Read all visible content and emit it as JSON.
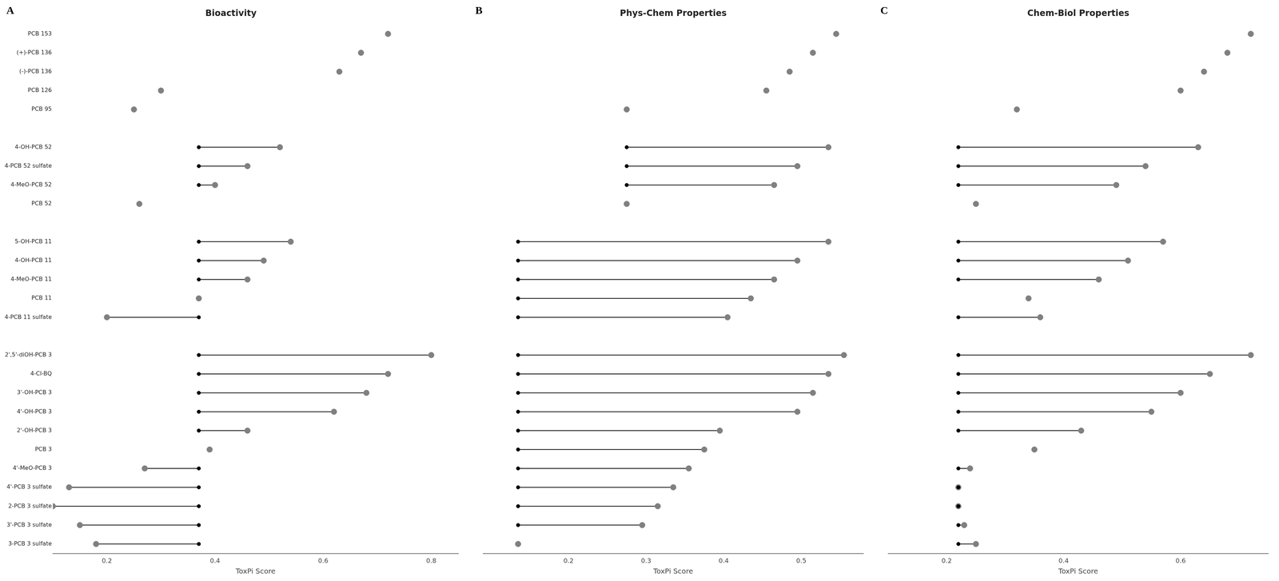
{
  "chart_data": [
    {
      "type": "dumbbell",
      "title": "Bioactivity",
      "xlabel": "ToxPi Score",
      "annotations": [
        "A"
      ],
      "categories": [
        "PCB 153",
        "(+)-PCB 136",
        "(-)-PCB 136",
        "PCB 126",
        "PCB 95",
        null,
        "4-OH-PCB 52",
        "4-PCB 52 sulfate",
        "4-MeO-PCB 52",
        "PCB 52",
        null,
        "5-OH-PCB 11",
        "4-OH-PCB 11",
        "4-MeO-PCB 11",
        "PCB 11",
        "4-PCB 11 sulfate",
        null,
        "2',5'-diOH-PCB 3",
        "4-Cl-BQ",
        "3'-OH-PCB 3",
        "4'-OH-PCB 3",
        "2'-OH-PCB 3",
        "PCB 3",
        "4'-MeO-PCB 3",
        "4'-PCB 3 sulfate",
        "2-PCB 3 sulfate",
        "3'-PCB 3 sulfate",
        "3-PCB 3 sulfate"
      ],
      "series": [
        {
          "color": "#000000",
          "values": [
            null,
            null,
            null,
            null,
            null,
            null,
            0.37,
            0.37,
            0.37,
            null,
            null,
            0.37,
            0.37,
            0.37,
            null,
            0.37,
            null,
            0.37,
            0.37,
            0.37,
            0.37,
            0.37,
            null,
            0.37,
            0.37,
            0.37,
            0.37,
            0.37
          ]
        },
        {
          "color": "#808080",
          "values": [
            0.72,
            0.67,
            0.63,
            0.3,
            0.25,
            null,
            0.52,
            0.46,
            0.4,
            0.26,
            null,
            0.54,
            0.49,
            0.46,
            0.37,
            0.2,
            null,
            0.8,
            0.72,
            0.68,
            0.62,
            0.46,
            0.39,
            0.27,
            0.13,
            0.1,
            0.15,
            0.18
          ]
        }
      ],
      "xlim": [
        0.1,
        0.85
      ],
      "xticks": [
        0.2,
        0.4,
        0.6,
        0.8
      ],
      "grid": false
    },
    {
      "type": "dumbbell",
      "title": "Phys-Chem Properties",
      "xlabel": "ToxPi Score",
      "annotations": [
        "B"
      ],
      "categories": [
        "PCB 153",
        "(+)-PCB 136",
        "(-)-PCB 136",
        "PCB 126",
        "PCB 95",
        null,
        "4-OH-PCB 52",
        "4-PCB 52 sulfate",
        "4-MeO-PCB 52",
        "PCB 52",
        null,
        "5-OH-PCB 11",
        "4-OH-PCB 11",
        "4-MeO-PCB 11",
        "PCB 11",
        "4-PCB 11 sulfate",
        null,
        "2',5'-diOH-PCB 3",
        "4-Cl-BQ",
        "3'-OH-PCB 3",
        "4'-OH-PCB 3",
        "2'-OH-PCB 3",
        "PCB 3",
        "4'-MeO-PCB 3",
        "4'-PCB 3 sulfate",
        "2-PCB 3 sulfate",
        "3'-PCB 3 sulfate",
        "3-PCB 3 sulfate"
      ],
      "series": [
        {
          "color": "#000000",
          "values": [
            null,
            null,
            null,
            null,
            null,
            null,
            0.275,
            0.275,
            0.275,
            null,
            null,
            0.135,
            0.135,
            0.135,
            0.135,
            0.135,
            null,
            0.135,
            0.135,
            0.135,
            0.135,
            0.135,
            0.135,
            0.135,
            0.135,
            0.135,
            0.135,
            null
          ]
        },
        {
          "color": "#808080",
          "values": [
            0.545,
            0.515,
            0.485,
            0.455,
            0.275,
            null,
            0.535,
            0.495,
            0.465,
            0.275,
            null,
            0.535,
            0.495,
            0.465,
            0.435,
            0.405,
            null,
            0.555,
            0.535,
            0.515,
            0.495,
            0.395,
            0.375,
            0.355,
            0.335,
            0.315,
            0.295,
            0.135
          ]
        }
      ],
      "xlim": [
        0.09,
        0.58
      ],
      "xticks": [
        0.2,
        0.3,
        0.4,
        0.5
      ],
      "grid": false,
      "tick_labels": "x"
    },
    {
      "type": "dumbbell",
      "title": "Chem-Biol Properties",
      "xlabel": "ToxPi Score",
      "annotations": [
        "C"
      ],
      "categories": [
        "PCB 153",
        "(+)-PCB 136",
        "(-)-PCB 136",
        "PCB 126",
        "PCB 95",
        null,
        "4-OH-PCB 52",
        "4-PCB 52 sulfate",
        "4-MeO-PCB 52",
        "PCB 52",
        null,
        "5-OH-PCB 11",
        "4-OH-PCB 11",
        "4-MeO-PCB 11",
        "PCB 11",
        "4-PCB 11 sulfate",
        null,
        "2',5'-diOH-PCB 3",
        "4-Cl-BQ",
        "3'-OH-PCB 3",
        "4'-OH-PCB 3",
        "2'-OH-PCB 3",
        "PCB 3",
        "4'-MeO-PCB 3",
        "4'-PCB 3 sulfate",
        "2-PCB 3 sulfate",
        "3'-PCB 3 sulfate",
        "3-PCB 3 sulfate"
      ],
      "series": [
        {
          "color": "#000000",
          "values": [
            null,
            null,
            null,
            null,
            null,
            null,
            0.22,
            0.22,
            0.22,
            null,
            null,
            0.22,
            0.22,
            0.22,
            null,
            0.22,
            null,
            0.22,
            0.22,
            0.22,
            0.22,
            0.22,
            null,
            0.22,
            0.22,
            0.22,
            0.22,
            0.22
          ]
        },
        {
          "color": "#808080",
          "values": [
            0.72,
            0.68,
            0.64,
            0.6,
            0.32,
            null,
            0.63,
            0.54,
            0.49,
            0.25,
            null,
            0.57,
            0.51,
            0.46,
            0.34,
            0.36,
            null,
            0.72,
            0.65,
            0.6,
            0.55,
            0.43,
            0.35,
            0.24,
            0.22,
            0.22,
            0.23,
            0.25
          ]
        }
      ],
      "xlim": [
        0.1,
        0.75
      ],
      "xticks": [
        0.2,
        0.4,
        0.6
      ],
      "grid": false,
      "tick_labels": "x"
    }
  ]
}
